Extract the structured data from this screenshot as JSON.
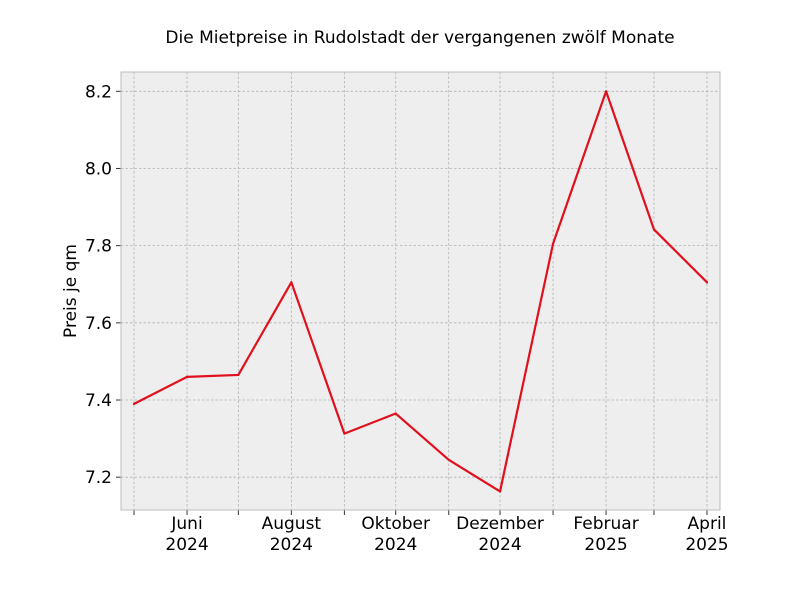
{
  "chart_data": {
    "type": "line",
    "title": "Die Mietpreise in Rudolstadt der vergangenen zwölf Monate",
    "xlabel": "",
    "ylabel": "Preis je qm",
    "x": [
      "2024-05",
      "2024-06",
      "2024-07",
      "2024-08",
      "2024-09",
      "2024-10",
      "2024-11",
      "2024-12",
      "2025-01",
      "2025-02",
      "2025-03",
      "2025-04"
    ],
    "series": [
      {
        "values": [
          7.39,
          7.46,
          7.465,
          7.705,
          7.313,
          7.365,
          7.245,
          7.163,
          7.805,
          8.2,
          7.842,
          7.705
        ]
      }
    ],
    "x_ticks": [
      {
        "x": "2024-06",
        "line1": "Juni",
        "line2": "2024"
      },
      {
        "x": "2024-08",
        "line1": "August",
        "line2": "2024"
      },
      {
        "x": "2024-10",
        "line1": "Oktober",
        "line2": "2024"
      },
      {
        "x": "2024-12",
        "line1": "Dezember",
        "line2": "2024"
      },
      {
        "x": "2025-02",
        "line1": "Februar",
        "line2": "2025"
      },
      {
        "x": "2025-04",
        "line1": "April",
        "line2": "2025"
      }
    ],
    "y_ticks": [
      "7.2",
      "7.4",
      "7.6",
      "7.8",
      "8.0",
      "8.2"
    ],
    "ylim": [
      7.115,
      8.25
    ],
    "grid": true,
    "colors": {
      "line": "#e0101d",
      "plot_background": "#eeeeee",
      "grid": "#b2b2b2",
      "frame": "#bcbcbc"
    }
  }
}
